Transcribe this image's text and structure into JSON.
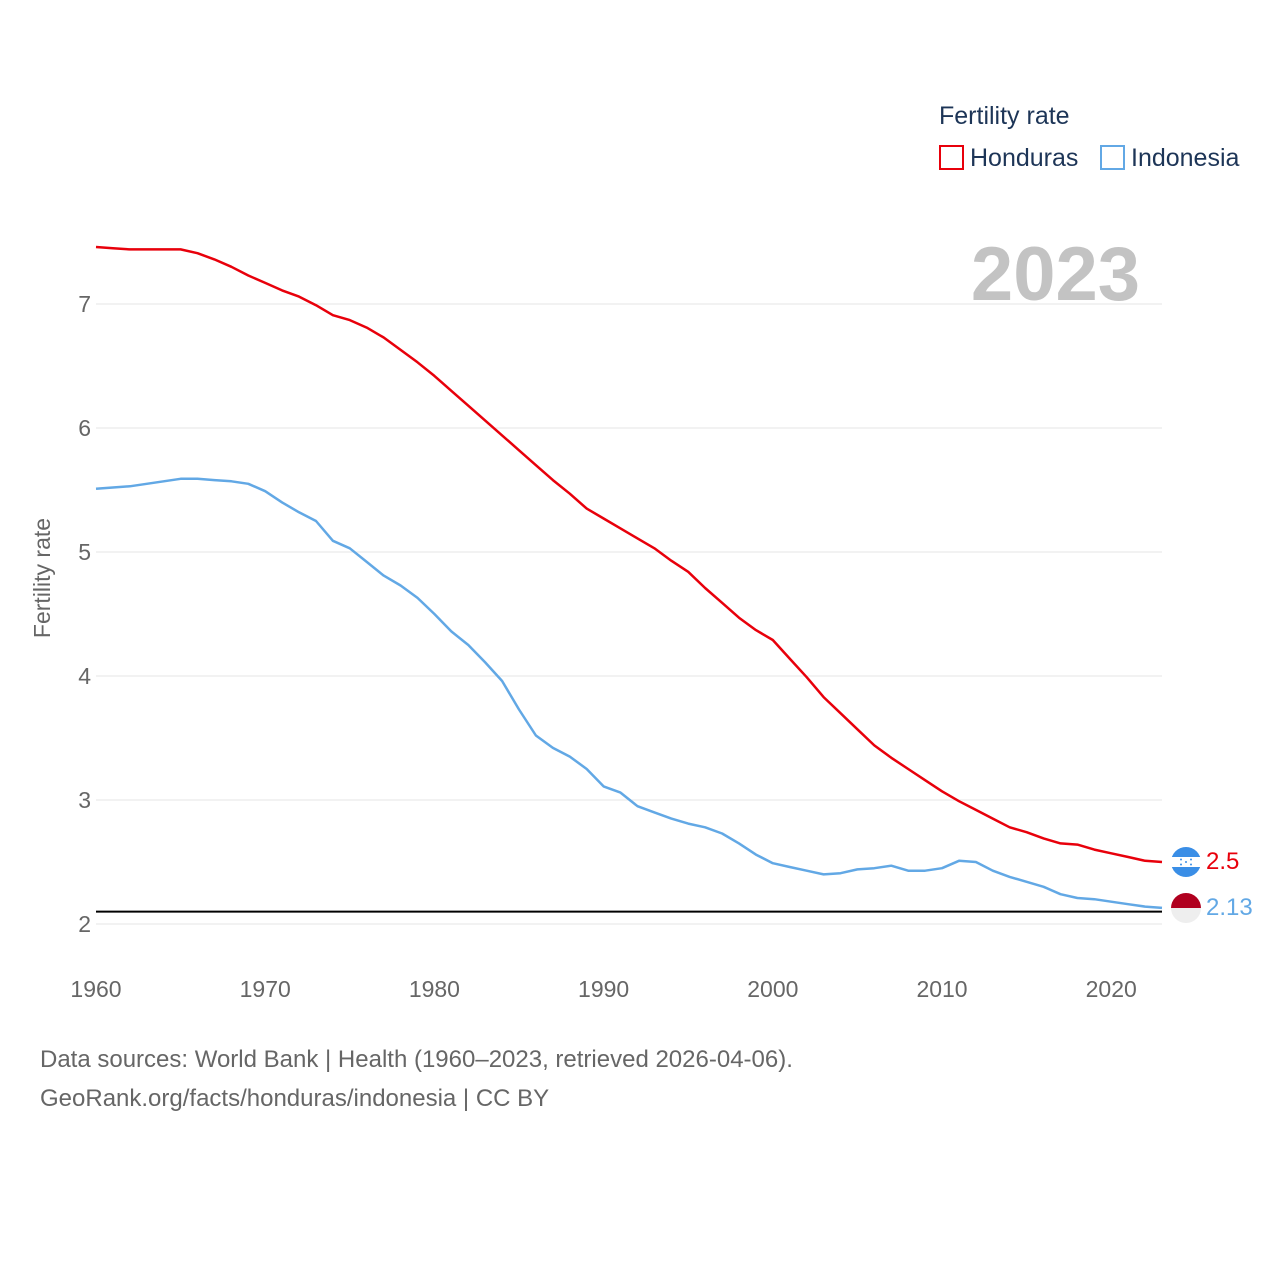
{
  "chart_data": {
    "type": "line",
    "legend_title": "Fertility rate",
    "ylabel": "Fertility rate",
    "xlabel": "",
    "year_label": "2023",
    "xlim": [
      1960,
      2023
    ],
    "ylim": [
      2,
      7.6
    ],
    "x_ticks": [
      1960,
      1970,
      1980,
      1990,
      2000,
      2010,
      2020
    ],
    "y_ticks": [
      2,
      3,
      4,
      5,
      6,
      7
    ],
    "reference_line": 2.1,
    "legend_position": "top-right",
    "years": [
      1960,
      1961,
      1962,
      1963,
      1964,
      1965,
      1966,
      1967,
      1968,
      1969,
      1970,
      1971,
      1972,
      1973,
      1974,
      1975,
      1976,
      1977,
      1978,
      1979,
      1980,
      1981,
      1982,
      1983,
      1984,
      1985,
      1986,
      1987,
      1988,
      1989,
      1990,
      1991,
      1992,
      1993,
      1994,
      1995,
      1996,
      1997,
      1998,
      1999,
      2000,
      2001,
      2002,
      2003,
      2004,
      2005,
      2006,
      2007,
      2008,
      2009,
      2010,
      2011,
      2012,
      2013,
      2014,
      2015,
      2016,
      2017,
      2018,
      2019,
      2020,
      2021,
      2022,
      2023
    ],
    "series": [
      {
        "name": "Honduras",
        "color": "#e8000b",
        "end_label": "2.5",
        "values": [
          7.46,
          7.45,
          7.44,
          7.44,
          7.44,
          7.44,
          7.41,
          7.36,
          7.3,
          7.23,
          7.17,
          7.11,
          7.06,
          6.99,
          6.91,
          6.87,
          6.81,
          6.73,
          6.63,
          6.53,
          6.42,
          6.3,
          6.18,
          6.06,
          5.94,
          5.82,
          5.7,
          5.58,
          5.47,
          5.35,
          5.27,
          5.19,
          5.11,
          5.03,
          4.93,
          4.84,
          4.71,
          4.59,
          4.47,
          4.37,
          4.29,
          4.14,
          3.99,
          3.83,
          3.7,
          3.57,
          3.44,
          3.34,
          3.25,
          3.16,
          3.07,
          2.99,
          2.92,
          2.85,
          2.78,
          2.74,
          2.69,
          2.65,
          2.64,
          2.6,
          2.57,
          2.54,
          2.51,
          2.5
        ]
      },
      {
        "name": "Indonesia",
        "color": "#62a8e5",
        "end_label": "2.13",
        "values": [
          5.51,
          5.52,
          5.53,
          5.55,
          5.57,
          5.59,
          5.59,
          5.58,
          5.57,
          5.55,
          5.49,
          5.4,
          5.32,
          5.25,
          5.09,
          5.03,
          4.92,
          4.81,
          4.73,
          4.63,
          4.5,
          4.36,
          4.25,
          4.11,
          3.96,
          3.73,
          3.52,
          3.42,
          3.35,
          3.25,
          3.11,
          3.06,
          2.95,
          2.9,
          2.85,
          2.81,
          2.78,
          2.73,
          2.65,
          2.56,
          2.49,
          2.46,
          2.43,
          2.4,
          2.41,
          2.44,
          2.45,
          2.47,
          2.43,
          2.43,
          2.45,
          2.51,
          2.5,
          2.43,
          2.38,
          2.34,
          2.3,
          2.24,
          2.21,
          2.2,
          2.18,
          2.16,
          2.14,
          2.13
        ]
      }
    ]
  },
  "footer": {
    "line1": "Data sources: World Bank | Health (1960–2023, retrieved 2026-04-06).",
    "line2": "GeoRank.org/facts/honduras/indonesia | CC BY"
  },
  "flags": {
    "honduras": "honduras-flag-icon",
    "indonesia": "indonesia-flag-icon"
  }
}
